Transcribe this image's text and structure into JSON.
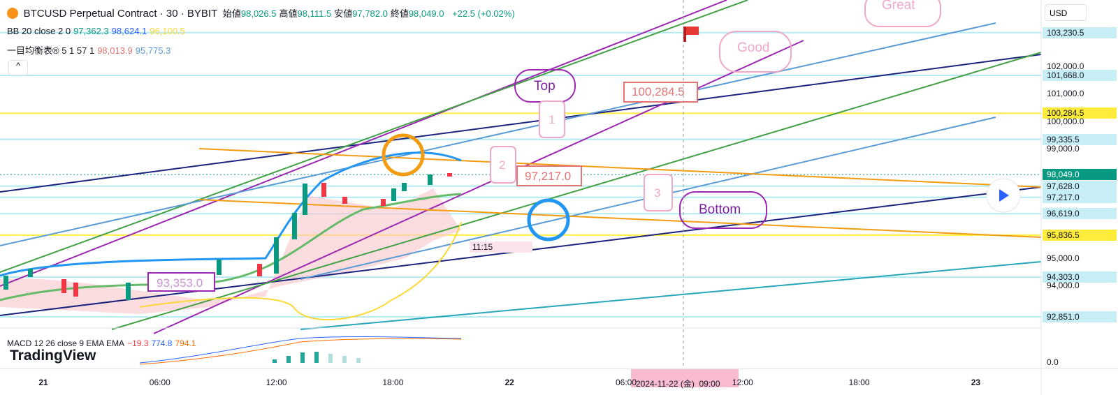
{
  "header": {
    "symbol": "BTCUSD Perpetual Contract · 30 · BYBIT",
    "ohlc": [
      {
        "label": "始値",
        "value": "98,026.5"
      },
      {
        "label": "高値",
        "value": "98,111.5"
      },
      {
        "label": "安値",
        "value": "97,782.0"
      },
      {
        "label": "終値",
        "value": "98,049.0"
      }
    ],
    "change": "+22.5 (+0.02%)"
  },
  "indicators": [
    {
      "name": "BB 20 close 2 0",
      "values": [
        "97,362.3",
        "98,624.1",
        "96,100.5"
      ]
    },
    {
      "name": "一目均衡表® 5 1 57 1",
      "values": [
        "98,013.9",
        "95,775.3"
      ]
    }
  ],
  "macd": {
    "name": "MACD 12 26 close 9 EMA EMA",
    "values": [
      "−19.3",
      "774.8",
      "794.1"
    ],
    "zero": "0.0"
  },
  "price_axis": {
    "currency": "USD",
    "ticks": [
      {
        "value": 103230.5,
        "label": "103,230.5",
        "style": "line"
      },
      {
        "value": 102000,
        "label": "102,000.0",
        "style": "plain"
      },
      {
        "value": 101668,
        "label": "101,668.0",
        "style": "line"
      },
      {
        "value": 101000,
        "label": "101,000.0",
        "style": "plain"
      },
      {
        "value": 100284.5,
        "label": "100,284.5",
        "style": "yellow"
      },
      {
        "value": 100000,
        "label": "100,000.0",
        "style": "plain"
      },
      {
        "value": 99335.5,
        "label": "99,335.5",
        "style": "line"
      },
      {
        "value": 99000,
        "label": "99,000.0",
        "style": "plain"
      },
      {
        "value": 98049,
        "label": "98,049.0",
        "style": "current"
      },
      {
        "value": 97628,
        "label": "97,628.0",
        "style": "line"
      },
      {
        "value": 97217,
        "label": "97,217.0",
        "style": "line"
      },
      {
        "value": 96619,
        "label": "96,619.0",
        "style": "line"
      },
      {
        "value": 95836.5,
        "label": "95,836.5",
        "style": "yellow"
      },
      {
        "value": 95000,
        "label": "95,000.0",
        "style": "plain"
      },
      {
        "value": 94303,
        "label": "94,303.0",
        "style": "line"
      },
      {
        "value": 94000,
        "label": "94,000.0",
        "style": "plain"
      },
      {
        "value": 92851,
        "label": "92,851.0",
        "style": "line"
      }
    ]
  },
  "time_axis": {
    "labels": [
      "21",
      "06:00",
      "12:00",
      "18:00",
      "22",
      "06:00",
      "12:00",
      "18:00",
      "23"
    ],
    "cursor": "2024-11-22 (金)  09:00"
  },
  "annotations": {
    "great": "Great",
    "good": "Good",
    "top": "Top",
    "bottom": "Bottom",
    "price_high": "100,284.5",
    "price_mid": "97,217.0",
    "price_low": "93,353.0",
    "num_1": "1",
    "num_2": "2",
    "num_3": "3",
    "time_box": "11:15"
  },
  "brand": "TradingView"
}
